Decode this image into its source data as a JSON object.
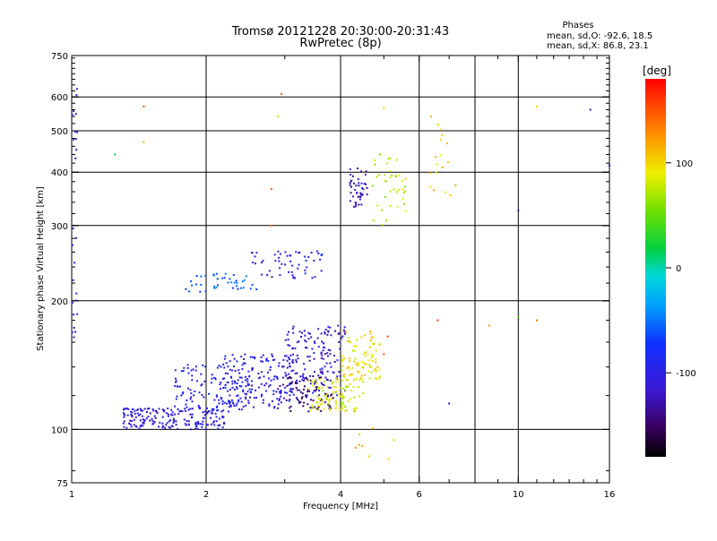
{
  "header": {
    "title_line1": "Tromsø 20121228 20:30:00-20:31:43",
    "title_line2": "RwPretec (8p)"
  },
  "phase_info": {
    "heading": "Phases",
    "line_o": "mean, sd,O:  -92.6, 18.5",
    "line_x": "mean, sd,X:  86.8, 23.1"
  },
  "chart_data": {
    "type": "scatter",
    "title": "Tromsø 20121228 20:30:00-20:31:43",
    "subtitle": "RwPretec (8p)",
    "xlabel": "Frequency [MHz]",
    "ylabel": "Stationary phase Virtual Height [km]",
    "x_scale": "log",
    "y_scale": "log",
    "xlim": [
      1,
      16
    ],
    "ylim": [
      75,
      750
    ],
    "x_ticks": [
      1,
      2,
      4,
      6,
      10,
      16
    ],
    "y_ticks": [
      75,
      100,
      200,
      300,
      400,
      500,
      600,
      750
    ],
    "x_grid": [
      2,
      4,
      6,
      8,
      10
    ],
    "y_grid": [
      100,
      200,
      300,
      400,
      500,
      600
    ],
    "grid": true,
    "colorbar": {
      "unit": "[deg]",
      "range": [
        -180,
        180
      ],
      "ticks": [
        100,
        0,
        -100
      ]
    },
    "clusters": [
      {
        "x0": 1.3,
        "x1": 2.2,
        "y0": 100,
        "y1": 112,
        "phase": -110,
        "n": 180
      },
      {
        "x0": 1.7,
        "x1": 2.5,
        "y0": 110,
        "y1": 142,
        "phase": -100,
        "n": 140
      },
      {
        "x0": 2.2,
        "x1": 3.2,
        "y0": 112,
        "y1": 150,
        "phase": -105,
        "n": 150
      },
      {
        "x0": 3.0,
        "x1": 4.1,
        "y0": 120,
        "y1": 175,
        "phase": -110,
        "n": 160
      },
      {
        "x0": 3.0,
        "x1": 3.9,
        "y0": 110,
        "y1": 135,
        "phase": -145,
        "n": 70
      },
      {
        "x0": 3.4,
        "x1": 4.5,
        "y0": 110,
        "y1": 132,
        "phase": 85,
        "n": 100
      },
      {
        "x0": 4.0,
        "x1": 4.9,
        "y0": 130,
        "y1": 170,
        "phase": 95,
        "n": 90
      },
      {
        "x0": 1.8,
        "x1": 2.6,
        "y0": 210,
        "y1": 232,
        "phase": -60,
        "n": 40
      },
      {
        "x0": 2.5,
        "x1": 3.7,
        "y0": 225,
        "y1": 262,
        "phase": -100,
        "n": 55
      },
      {
        "x0": 4.2,
        "x1": 4.6,
        "y0": 330,
        "y1": 410,
        "phase": -120,
        "n": 45
      },
      {
        "x0": 4.7,
        "x1": 5.6,
        "y0": 300,
        "y1": 440,
        "phase": 80,
        "n": 40
      },
      {
        "x0": 6.3,
        "x1": 7.3,
        "y0": 340,
        "y1": 560,
        "phase": 100,
        "n": 18
      },
      {
        "x0": 4.3,
        "x1": 5.4,
        "y0": 85,
        "y1": 110,
        "phase": 110,
        "n": 8
      },
      {
        "x0": 1.0,
        "x1": 1.03,
        "y0": 160,
        "y1": 640,
        "phase": -110,
        "n": 25
      }
    ],
    "points": [
      {
        "x": 1.25,
        "y": 440,
        "phase": 20
      },
      {
        "x": 1.45,
        "y": 470,
        "phase": 110
      },
      {
        "x": 1.45,
        "y": 570,
        "phase": 150
      },
      {
        "x": 2.8,
        "y": 365,
        "phase": 150
      },
      {
        "x": 2.8,
        "y": 300,
        "phase": 140
      },
      {
        "x": 2.9,
        "y": 540,
        "phase": 100
      },
      {
        "x": 2.95,
        "y": 610,
        "phase": 150
      },
      {
        "x": 6.6,
        "y": 180,
        "phase": 160
      },
      {
        "x": 7.0,
        "y": 115,
        "phase": -130
      },
      {
        "x": 8.6,
        "y": 175,
        "phase": 130
      },
      {
        "x": 10.0,
        "y": 183,
        "phase": 40
      },
      {
        "x": 10.0,
        "y": 325,
        "phase": -130
      },
      {
        "x": 11.0,
        "y": 180,
        "phase": 140
      },
      {
        "x": 11.0,
        "y": 570,
        "phase": 100
      },
      {
        "x": 14.5,
        "y": 560,
        "phase": -130
      },
      {
        "x": 16.0,
        "y": 415,
        "phase": -130
      },
      {
        "x": 5.0,
        "y": 565,
        "phase": 100
      },
      {
        "x": 5.1,
        "y": 165,
        "phase": 160
      },
      {
        "x": 5.0,
        "y": 150,
        "phase": 150
      }
    ]
  }
}
